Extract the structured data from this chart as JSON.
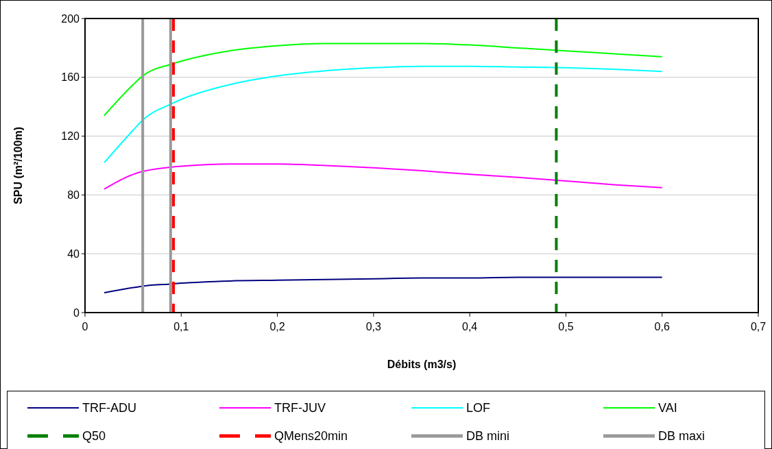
{
  "chart_data": {
    "type": "line",
    "xlabel": "Débits (m3/s)",
    "ylabel": "SPU (m²/100m)",
    "x": [
      0.02,
      0.05,
      0.06,
      0.09,
      0.1,
      0.15,
      0.2,
      0.25,
      0.3,
      0.35,
      0.4,
      0.45,
      0.5,
      0.55,
      0.6
    ],
    "series": [
      {
        "name": "TRF-ADU",
        "color": "#000080",
        "values": [
          13.5,
          17,
          18,
          19.5,
          20,
          21.5,
          22,
          22.5,
          23,
          23.5,
          23.5,
          24,
          24,
          24,
          24
        ]
      },
      {
        "name": "TRF-JUV",
        "color": "#ff00ff",
        "values": [
          84,
          94,
          96,
          99,
          99.5,
          101,
          101,
          100,
          98.5,
          96.5,
          94,
          92,
          89.5,
          87,
          85
        ]
      },
      {
        "name": "LOF",
        "color": "#00ffff",
        "values": [
          102,
          124,
          131,
          142,
          145,
          155,
          161,
          164.5,
          166.5,
          167.5,
          167.5,
          167,
          166.5,
          165.5,
          164
        ]
      },
      {
        "name": "VAI",
        "color": "#00ff00",
        "values": [
          134,
          155,
          161,
          169,
          171,
          178,
          181.5,
          183,
          183,
          183,
          182,
          180,
          178,
          176,
          174
        ]
      }
    ],
    "ref_lines": [
      {
        "axis": "x",
        "value": 0.49,
        "label": "Q50",
        "color": "#008000",
        "line_style": "dashed"
      },
      {
        "axis": "x",
        "value": 0.092,
        "label": "QMens20min",
        "color": "#ff0000",
        "line_style": "dashed"
      },
      {
        "axis": "x",
        "value": 0.06,
        "label": "DB mini",
        "color": "#999999",
        "line_style": "solid"
      },
      {
        "axis": "x",
        "value": 0.089,
        "label": "DB maxi",
        "color": "#999999",
        "line_style": "solid"
      }
    ],
    "xlim": [
      0,
      0.7
    ],
    "xticks": [
      0,
      {
        "value": 0.1,
        "label": "0,1"
      },
      {
        "value": 0.2,
        "label": "0,2"
      },
      {
        "value": 0.3,
        "label": "0,3"
      },
      {
        "value": 0.4,
        "label": "0,4"
      },
      {
        "value": 0.5,
        "label": "0,5"
      },
      {
        "value": 0.6,
        "label": "0,6"
      },
      {
        "value": 0.7,
        "label": "0,7"
      }
    ],
    "ylim": [
      0,
      200
    ],
    "yticks": [
      0,
      40,
      80,
      120,
      160,
      200
    ],
    "grid": "y",
    "legend": "bottom",
    "marker": "none",
    "line_style": "solid"
  }
}
